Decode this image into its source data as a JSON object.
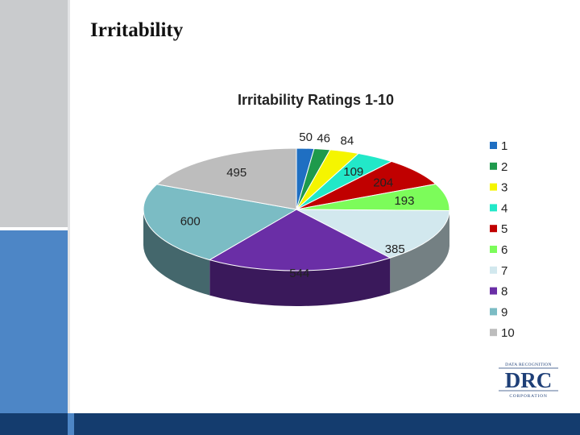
{
  "slide": {
    "title": "Irritability"
  },
  "chart_data": {
    "type": "pie",
    "title": "Irritability Ratings 1-10",
    "categories": [
      "1",
      "2",
      "3",
      "4",
      "5",
      "6",
      "7",
      "8",
      "9",
      "10"
    ],
    "values": [
      50,
      46,
      84,
      109,
      204,
      193,
      385,
      544,
      600,
      495
    ],
    "colors": [
      "#1f6fc2",
      "#1e9a4c",
      "#f5f500",
      "#22e8c8",
      "#c00000",
      "#7cfc5a",
      "#d2e8ee",
      "#6a2ea6",
      "#7bbcc4",
      "#bdbdbd"
    ],
    "legend": "right",
    "style": "3d"
  },
  "logo": {
    "top": "DATA RECOGNITION",
    "main": "DRC",
    "bottom": "CORPORATION"
  }
}
